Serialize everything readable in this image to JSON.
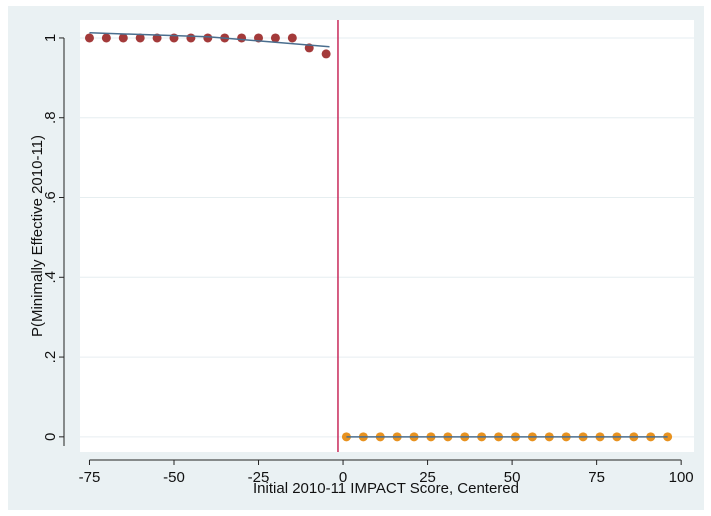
{
  "chart_data": {
    "type": "scatter",
    "xlabel": "Initial 2010-11 IMPACT Score, Centered",
    "ylabel": "P(Minimally Effective 2010-11)",
    "xlim": [
      -77.8,
      103.8
    ],
    "ylim": [
      -0.038,
      1.045
    ],
    "xticks": [
      -75,
      -50,
      -25,
      0,
      25,
      50,
      75,
      100
    ],
    "yticks": [
      0,
      {
        "value": 0.2,
        "label": ".2"
      },
      {
        "value": 0.4,
        "label": ".4"
      },
      {
        "value": 0.6,
        "label": ".6"
      },
      {
        "value": 0.8,
        "label": ".8"
      },
      1
    ],
    "grid": true,
    "vline": {
      "x": -1.5,
      "color": "#c8295a"
    },
    "series": [
      {
        "mode": "markers",
        "color": "#a33a3a",
        "x": [
          -75,
          -70,
          -65,
          -60,
          -55,
          -50,
          -45,
          -40,
          -35,
          -30,
          -25,
          -20,
          -15,
          -10,
          -5
        ],
        "values": [
          1,
          1,
          1,
          1,
          1,
          1,
          1,
          1,
          1,
          1,
          1,
          1,
          1,
          0.975,
          0.96
        ]
      },
      {
        "mode": "markers",
        "color": "#e8921f",
        "x": [
          1,
          6,
          11,
          16,
          21,
          26,
          31,
          36,
          41,
          46,
          51,
          56,
          61,
          66,
          71,
          76,
          81,
          86,
          91,
          96
        ],
        "values": [
          0,
          0,
          0,
          0,
          0,
          0,
          0,
          0,
          0,
          0,
          0,
          0,
          0,
          0,
          0,
          0,
          0,
          0,
          0,
          0
        ]
      },
      {
        "mode": "line",
        "color": "#4a6e8e",
        "x": [
          -75,
          -40,
          -4
        ],
        "values": [
          1.013,
          1.003,
          0.978
        ]
      },
      {
        "mode": "line",
        "color": "#4a6e8e",
        "x": [
          1,
          96
        ],
        "values": [
          0,
          0
        ]
      }
    ]
  }
}
